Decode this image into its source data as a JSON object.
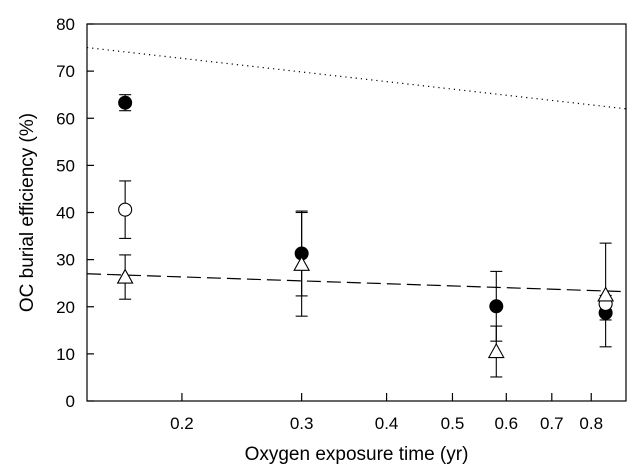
{
  "chart_data": {
    "type": "scatter",
    "title": "",
    "xlabel": "Oxygen exposure time (yr)",
    "ylabel": "OC burial efficiency (%)",
    "x_scale": "log",
    "xlim": [
      0.145,
      0.9
    ],
    "ylim": [
      0,
      80
    ],
    "x_ticks": [
      0.2,
      0.3,
      0.4,
      0.5,
      0.6,
      0.7,
      0.8
    ],
    "x_tick_labels": [
      "0.2",
      "0.3",
      "0.4",
      "0.5",
      "0.6",
      "0.7",
      "0.8"
    ],
    "y_ticks": [
      0,
      10,
      20,
      30,
      40,
      50,
      60,
      70,
      80
    ],
    "y_tick_labels": [
      "0",
      "10",
      "20",
      "30",
      "40",
      "50",
      "60",
      "70",
      "80"
    ],
    "grid": false,
    "legend": "none",
    "series": [
      {
        "marker": "filled-circle",
        "points": [
          {
            "x": 0.165,
            "y": 63.3,
            "err": 1.7
          },
          {
            "x": 0.3,
            "y": 31.3,
            "err": 9.0
          },
          {
            "x": 0.58,
            "y": 20.1,
            "err": 7.4
          },
          {
            "x": 0.84,
            "y": 18.7,
            "err": 1.5
          }
        ]
      },
      {
        "marker": "open-circle",
        "points": [
          {
            "x": 0.165,
            "y": 40.6,
            "err": 6.1
          },
          {
            "x": 0.84,
            "y": 20.6,
            "err": 1.8
          }
        ]
      },
      {
        "marker": "open-triangle",
        "points": [
          {
            "x": 0.165,
            "y": 26.3,
            "err": 4.7
          },
          {
            "x": 0.3,
            "y": 29.0,
            "err": 11.0
          },
          {
            "x": 0.58,
            "y": 10.5,
            "err": 5.4
          },
          {
            "x": 0.84,
            "y": 22.5,
            "err": 11.0
          }
        ]
      }
    ],
    "lines": [
      {
        "style": "dotted",
        "x": [
          0.145,
          0.9
        ],
        "y": [
          75.0,
          62.0
        ]
      },
      {
        "style": "dashed",
        "x": [
          0.145,
          0.9
        ],
        "y": [
          27.0,
          23.2
        ]
      }
    ]
  }
}
